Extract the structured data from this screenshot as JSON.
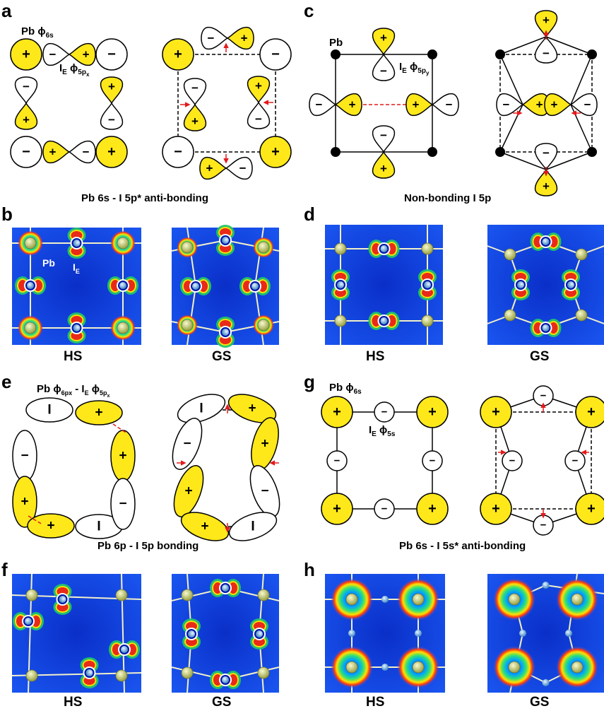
{
  "panels": {
    "a": {
      "letter": "a",
      "pb_label": "Pb",
      "pb_orbital": "ϕ",
      "pb_orbital_sub": "6s",
      "ie_label": "I",
      "ie_sub": "E",
      "ie_orbital": "ϕ",
      "ie_orbital_sub": "5p",
      "ie_orbital_subsub": "x"
    },
    "b": {
      "letter": "b",
      "pb_label": "Pb",
      "ie_label": "I",
      "ie_sub": "E"
    },
    "c": {
      "letter": "c",
      "pb_label": "Pb",
      "ie_label": "I",
      "ie_sub": "E",
      "ie_orbital": "ϕ",
      "ie_orbital_sub": "5p",
      "ie_orbital_subsub": "y"
    },
    "d": {
      "letter": "d"
    },
    "e": {
      "letter": "e",
      "formula_pb": "Pb ϕ",
      "formula_pb_sub": "6px",
      "formula_dash": " - I",
      "formula_e": "E",
      "formula_orb": " ϕ",
      "formula_orb_sub": "5p",
      "formula_orb_subsub": "x"
    },
    "f": {
      "letter": "f"
    },
    "g": {
      "letter": "g",
      "pb_label": "Pb",
      "pb_orbital": "ϕ",
      "pb_orbital_sub": "6s",
      "ie_label": "I",
      "ie_sub": "E",
      "ie_orbital": "ϕ",
      "ie_orbital_sub": "5s"
    },
    "h": {
      "letter": "h"
    }
  },
  "captions": {
    "ab": "Pb 6s - I 5p* anti-bonding",
    "cd": "Non-bonding I 5p",
    "ef": "Pb 6p - I 5p bonding",
    "gh": "Pb 6s - I 5s* anti-bonding"
  },
  "map_labels": {
    "hs": "HS",
    "gs": "GS"
  },
  "signs": {
    "plus": "+",
    "minus": "−"
  },
  "colors": {
    "lobe_positive": "#FFE81A",
    "lobe_negative": "#FFFFFF",
    "arrow": "#E41A1C",
    "map_background": "#0B3AE0",
    "atom_pb": "#D9DD8A",
    "atom_i": "#9CC7E8"
  }
}
